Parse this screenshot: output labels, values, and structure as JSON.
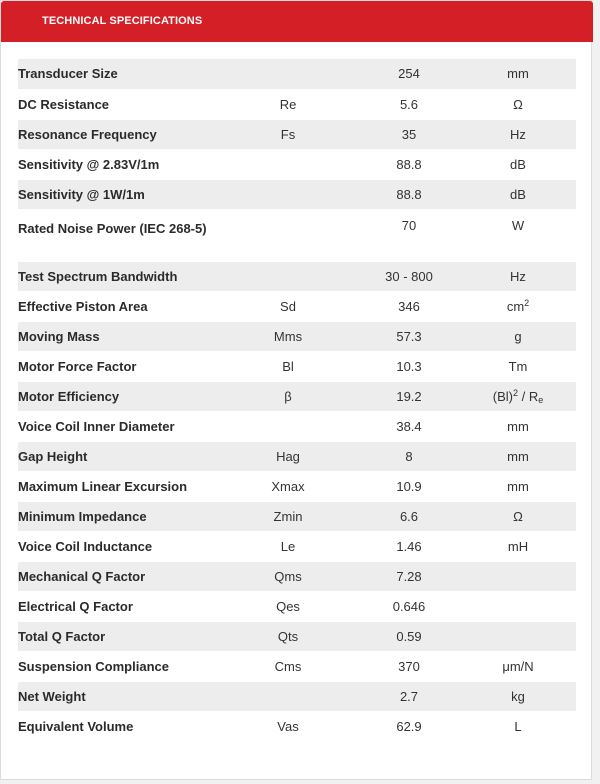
{
  "header": {
    "title": "TECHNICAL SPECIFICATIONS"
  },
  "specs": [
    {
      "name": "Transducer Size",
      "symbol": "",
      "value": "254",
      "unit": "mm"
    },
    {
      "name": "DC Resistance",
      "symbol": "Re",
      "value": "5.6",
      "unit": "Ω"
    },
    {
      "name": "Resonance Frequency",
      "symbol": "Fs",
      "value": "35",
      "unit": "Hz"
    },
    {
      "name": "Sensitivity @ 2.83V/1m",
      "symbol": "",
      "value": "88.8",
      "unit": "dB"
    },
    {
      "name": "Sensitivity @ 1W/1m",
      "symbol": "",
      "value": "88.8",
      "unit": "dB"
    },
    {
      "name": "Rated Noise Power (IEC 268-5)",
      "symbol": "",
      "value": "70",
      "unit": "W"
    },
    {
      "name": "Test Spectrum Bandwidth",
      "symbol": "",
      "value": "30 - 800",
      "unit": "Hz"
    },
    {
      "name": "Effective Piston Area",
      "symbol": "Sd",
      "value": "346",
      "unit": "cm",
      "unit_sup": "2"
    },
    {
      "name": "Moving Mass",
      "symbol": "Mms",
      "value": "57.3",
      "unit": "g"
    },
    {
      "name": "Motor Force Factor",
      "symbol": "Bl",
      "value": "10.3",
      "unit": "Tm"
    },
    {
      "name": "Motor Efficiency",
      "symbol": "β",
      "value": "19.2",
      "unit": "(Bl)",
      "unit_sup": "2",
      "unit_rest": " / R",
      "unit_sub": "e"
    },
    {
      "name": "Voice Coil Inner Diameter",
      "symbol": "",
      "value": "38.4",
      "unit": "mm"
    },
    {
      "name": "Gap Height",
      "symbol": "Hag",
      "value": "8",
      "unit": "mm"
    },
    {
      "name": "Maximum Linear Excursion",
      "symbol": "Xmax",
      "value": "10.9",
      "unit": "mm"
    },
    {
      "name": "Minimum Impedance",
      "symbol": "Zmin",
      "value": "6.6",
      "unit": "Ω"
    },
    {
      "name": "Voice Coil Inductance",
      "symbol": "Le",
      "value": "1.46",
      "unit": "mH"
    },
    {
      "name": "Mechanical Q Factor",
      "symbol": "Qms",
      "value": "7.28",
      "unit": ""
    },
    {
      "name": "Electrical Q Factor",
      "symbol": "Qes",
      "value": "0.646",
      "unit": ""
    },
    {
      "name": "Total Q Factor",
      "symbol": "Qts",
      "value": "0.59",
      "unit": ""
    },
    {
      "name": "Suspension Compliance",
      "symbol": "Cms",
      "value": "370",
      "unit": "μm/N"
    },
    {
      "name": "Net Weight",
      "symbol": "",
      "value": "2.7",
      "unit": "kg"
    },
    {
      "name": "Equivalent Volume",
      "symbol": "Vas",
      "value": "62.9",
      "unit": "L"
    }
  ]
}
